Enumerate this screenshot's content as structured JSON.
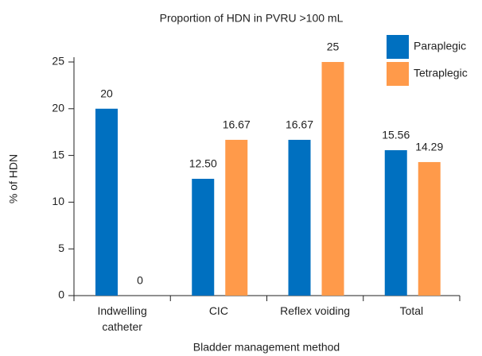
{
  "chart_data": {
    "type": "bar",
    "title": "Proportion of HDN in PVRU >100 mL",
    "x_label": "Bladder management method",
    "y_label": "% of HDN",
    "categories": [
      "Indwelling catheter",
      "CIC",
      "Reflex voiding",
      "Total"
    ],
    "series": [
      {
        "name": "Paraplegic",
        "color": "#0070c0",
        "values": [
          20,
          12.5,
          16.67,
          15.56
        ],
        "value_labels": [
          "20",
          "12.50",
          "16.67",
          "15.56"
        ]
      },
      {
        "name": "Tetraplegic",
        "color": "#ff9a4a",
        "values": [
          0,
          16.67,
          25,
          14.29
        ],
        "value_labels": [
          "0",
          "16.67",
          "25",
          "14.29"
        ]
      }
    ],
    "ylim": [
      0,
      25
    ],
    "yticks": [
      0,
      5,
      10,
      15,
      20,
      25
    ],
    "legend": "top-right"
  }
}
